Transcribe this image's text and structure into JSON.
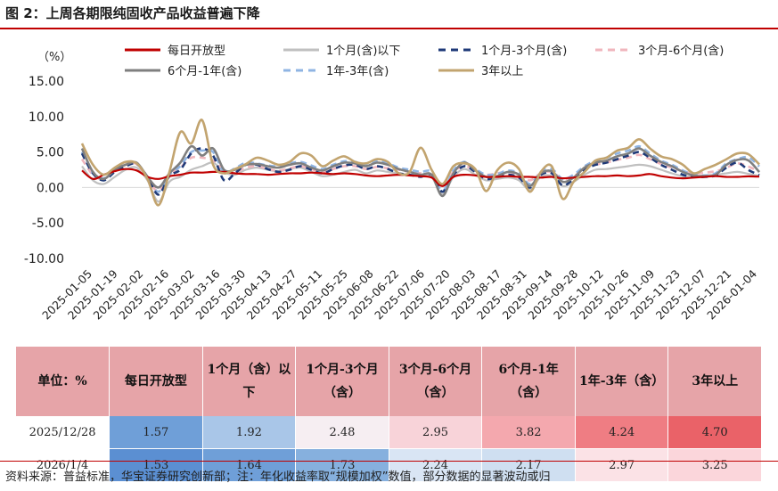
{
  "title": "图 2：上周各期限纯固收产品收益普遍下降",
  "source": "资料来源：普益标准，华宝证券研究创新部；注：年化收益率取“规模加权”数值，部分数据的显著波动或归",
  "chart_data": {
    "type": "line",
    "ylabel": "（%）",
    "ylim": [
      -10,
      15
    ],
    "yticks": [
      "15.00",
      "10.00",
      "5.00",
      "0.00",
      "-5.00",
      "-10.00"
    ],
    "ytick_values": [
      15,
      10,
      5,
      0,
      -5,
      -10
    ],
    "grid": false,
    "legend_position": "top",
    "x_ticks": [
      "2025-01-05",
      "2025-01-19",
      "2025-02-02",
      "2025-02-16",
      "2025-03-02",
      "2025-03-16",
      "2025-03-30",
      "2025-04-13",
      "2025-04-27",
      "2025-05-11",
      "2025-05-25",
      "2025-06-08",
      "2025-06-22",
      "2025-07-06",
      "2025-07-20",
      "2025-08-03",
      "2025-08-17",
      "2025-08-31",
      "2025-09-14",
      "2025-09-28",
      "2025-10-12",
      "2025-10-26",
      "2025-11-09",
      "2025-11-23",
      "2025-12-07",
      "2025-12-21",
      "2026-01-04"
    ],
    "series": [
      {
        "name": "每日开放型",
        "color": "#c00000",
        "style": "solid",
        "width": 2.2,
        "values": [
          2.4,
          1.2,
          1.8,
          2.3,
          2.6,
          2.4,
          1.5,
          1.2,
          1.6,
          1.8,
          2.1,
          2.1,
          2.2,
          2.2,
          2.0,
          1.9,
          1.9,
          1.8,
          1.9,
          2.0,
          2.0,
          2.1,
          2.0,
          1.9,
          2.0,
          1.9,
          1.7,
          1.6,
          1.7,
          1.8,
          1.7,
          1.6,
          1.4,
          0.2,
          1.5,
          1.8,
          1.7,
          1.5,
          1.5,
          1.6,
          1.5,
          1.5,
          1.4,
          1.5,
          1.3,
          1.4,
          1.5,
          1.6,
          1.6,
          1.7,
          1.6,
          1.7,
          1.9,
          1.6,
          1.4,
          1.3,
          1.4,
          1.5,
          1.6,
          1.5,
          1.5,
          1.57,
          1.53
        ]
      },
      {
        "name": "1个月(含)以下",
        "color": "#c0c0c0",
        "style": "solid",
        "width": 2.2,
        "values": [
          3.0,
          1.0,
          0.5,
          1.5,
          2.5,
          2.8,
          1.0,
          -2.0,
          0.8,
          1.5,
          2.5,
          3.0,
          3.5,
          2.2,
          1.8,
          2.5,
          2.8,
          2.5,
          2.3,
          2.6,
          2.8,
          2.2,
          1.6,
          1.8,
          2.2,
          2.5,
          2.0,
          2.4,
          2.2,
          2.0,
          1.8,
          1.7,
          1.5,
          -1.0,
          1.5,
          2.6,
          1.8,
          1.0,
          1.2,
          1.4,
          1.0,
          -0.3,
          1.5,
          1.6,
          0.2,
          0.8,
          1.8,
          2.5,
          2.6,
          2.8,
          3.0,
          3.2,
          3.0,
          2.5,
          2.0,
          1.6,
          1.5,
          1.7,
          1.8,
          2.0,
          2.2,
          1.92,
          1.64
        ]
      },
      {
        "name": "1个月-3个月(含)",
        "color": "#1f3a78",
        "style": "dashed",
        "width": 2.6,
        "values": [
          4.8,
          2.0,
          1.0,
          2.2,
          3.0,
          3.3,
          1.5,
          -1.0,
          1.6,
          2.5,
          4.8,
          5.5,
          4.5,
          1.0,
          2.0,
          3.2,
          3.2,
          2.6,
          2.2,
          2.5,
          3.0,
          2.5,
          2.0,
          2.6,
          3.1,
          3.2,
          2.6,
          3.0,
          2.6,
          2.0,
          1.8,
          1.5,
          1.8,
          -0.6,
          1.8,
          3.0,
          2.2,
          1.2,
          1.5,
          1.8,
          1.4,
          0.0,
          1.8,
          2.0,
          0.3,
          1.2,
          2.5,
          3.2,
          3.5,
          4.0,
          4.5,
          5.0,
          4.2,
          3.2,
          2.5,
          1.8,
          1.5,
          1.5,
          1.7,
          2.8,
          3.5,
          2.48,
          1.73
        ]
      },
      {
        "name": "3个月-6个月(含)",
        "color": "#f0b6bd",
        "style": "dashed",
        "width": 2.6,
        "values": [
          4.0,
          1.8,
          1.2,
          2.4,
          3.2,
          3.3,
          1.2,
          -0.5,
          1.8,
          2.8,
          4.2,
          4.2,
          3.8,
          2.5,
          2.2,
          2.8,
          3.0,
          2.6,
          2.4,
          2.7,
          3.0,
          2.6,
          2.2,
          2.6,
          3.0,
          3.0,
          2.6,
          2.9,
          2.7,
          2.5,
          2.2,
          2.0,
          1.8,
          0.4,
          2.2,
          3.0,
          2.4,
          1.8,
          2.0,
          2.2,
          1.8,
          1.0,
          2.0,
          2.2,
          1.2,
          1.6,
          2.6,
          3.2,
          3.5,
          3.9,
          4.2,
          4.6,
          4.0,
          3.3,
          2.8,
          2.3,
          2.0,
          2.1,
          2.3,
          2.8,
          3.4,
          2.95,
          2.24
        ]
      },
      {
        "name": "6个月-1年(含)",
        "color": "#7f7f7f",
        "style": "solid",
        "width": 2.6,
        "values": [
          5.5,
          2.2,
          1.2,
          2.5,
          3.2,
          3.5,
          1.5,
          0.0,
          2.0,
          3.5,
          5.8,
          4.5,
          5.5,
          2.5,
          2.5,
          3.2,
          3.3,
          3.0,
          2.8,
          3.2,
          3.4,
          2.8,
          2.4,
          3.0,
          3.5,
          3.4,
          3.0,
          3.5,
          3.2,
          2.6,
          2.2,
          1.8,
          1.8,
          -1.2,
          2.0,
          3.5,
          2.4,
          1.5,
          1.6,
          2.2,
          1.8,
          0.2,
          2.0,
          2.3,
          0.8,
          1.4,
          2.8,
          3.5,
          3.8,
          4.4,
          4.8,
          5.5,
          4.5,
          3.6,
          3.0,
          2.2,
          1.7,
          1.6,
          1.8,
          3.2,
          3.9,
          3.82,
          2.17
        ]
      },
      {
        "name": "1年-3年(含)",
        "color": "#8fb4e3",
        "style": "dashed",
        "width": 2.6,
        "values": [
          5.0,
          2.0,
          1.3,
          2.6,
          3.3,
          3.4,
          1.4,
          -0.6,
          1.8,
          3.0,
          5.0,
          5.2,
          5.0,
          2.2,
          2.7,
          3.5,
          3.4,
          3.1,
          3.0,
          3.4,
          3.6,
          3.1,
          2.6,
          3.2,
          3.7,
          3.6,
          3.2,
          3.8,
          3.4,
          2.8,
          2.5,
          2.2,
          2.2,
          -0.5,
          2.4,
          3.6,
          2.6,
          1.8,
          1.9,
          2.4,
          2.0,
          0.5,
          2.2,
          2.6,
          1.2,
          1.8,
          3.0,
          3.8,
          4.2,
          4.8,
          5.2,
          5.8,
          4.8,
          3.8,
          3.2,
          2.4,
          1.8,
          1.7,
          2.0,
          3.4,
          4.0,
          4.24,
          2.97
        ]
      },
      {
        "name": "3年以上",
        "color": "#c2a46f",
        "style": "solid",
        "width": 2.6,
        "values": [
          6.2,
          3.2,
          1.8,
          2.8,
          3.6,
          3.4,
          1.2,
          -2.5,
          2.2,
          7.8,
          6.2,
          9.5,
          3.2,
          2.0,
          2.6,
          3.3,
          4.2,
          3.8,
          3.2,
          3.6,
          4.8,
          4.5,
          3.0,
          3.8,
          4.4,
          3.6,
          3.4,
          4.0,
          3.6,
          2.0,
          2.2,
          5.6,
          2.5,
          0.5,
          3.0,
          3.4,
          2.6,
          -0.5,
          2.4,
          3.5,
          2.6,
          -0.6,
          2.2,
          3.0,
          -1.6,
          0.8,
          2.2,
          3.8,
          4.2,
          5.2,
          5.6,
          6.8,
          5.5,
          4.4,
          4.0,
          3.2,
          2.0,
          2.6,
          3.2,
          4.0,
          4.8,
          4.7,
          3.25
        ]
      }
    ]
  },
  "table": {
    "header": [
      "单位：%",
      "每日开放型",
      "1个月（含）以下",
      "1个月-3个月（含）",
      "3个月-6个月（含）",
      "6个月-1年（含）",
      "1年-3年（含）",
      "3年以上"
    ],
    "rows": [
      {
        "date": "2025/12/28",
        "values": [
          "1.57",
          "1.92",
          "2.48",
          "2.95",
          "3.82",
          "4.24",
          "4.70"
        ],
        "colors": [
          "#6f9fd8",
          "#a9c6e8",
          "#f6eef2",
          "#f8d3d9",
          "#f4a8ae",
          "#ef7d83",
          "#ea6268"
        ]
      },
      {
        "date": "2026/1/4",
        "values": [
          "1.53",
          "1.64",
          "1.73",
          "2.24",
          "2.17",
          "2.97",
          "3.25"
        ],
        "colors": [
          "#5b8fd2",
          "#6f9fd8",
          "#86b0de",
          "#d9e5f4",
          "#cfdff1",
          "#fbe2e6",
          "#fbd6db"
        ]
      }
    ]
  }
}
